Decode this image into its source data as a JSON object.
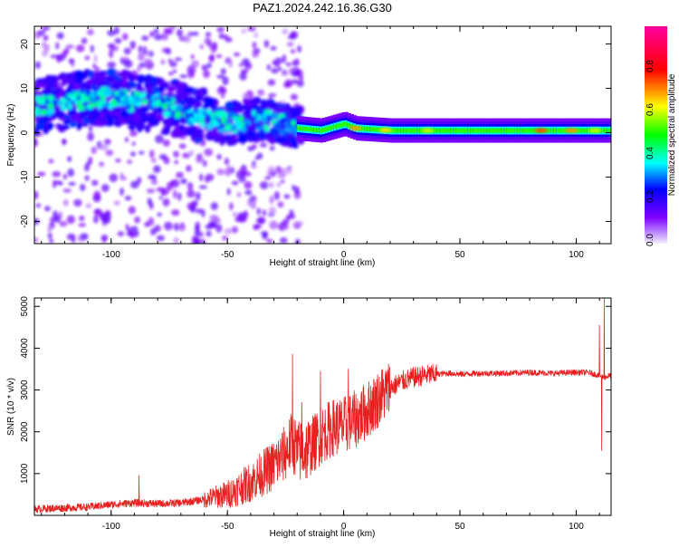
{
  "title": "PAZ1.2024.242.16.36.G30",
  "colors": {
    "line": "#e82020",
    "frame": "#000000",
    "background": "#ffffff"
  },
  "chart_data": [
    {
      "type": "heatmap",
      "xlabel": "Height of straight line (km)",
      "ylabel": "Frequency (Hz)",
      "xlim": [
        -133,
        115
      ],
      "ylim": [
        -25,
        24
      ],
      "xticks": [
        -100,
        -50,
        0,
        50,
        100
      ],
      "xtick_labels": [
        "-100",
        "-50",
        "0",
        "50",
        "100"
      ],
      "yticks": [
        -20,
        -10,
        0,
        10,
        20
      ],
      "ytick_labels": [
        "-20",
        "-10",
        "0",
        "10",
        "20"
      ],
      "colorbar": {
        "label": "Normalized spectral amplitude",
        "range": [
          0,
          1
        ],
        "ticks": [
          0.0,
          0.2,
          0.4,
          0.6,
          0.8
        ],
        "tick_labels": [
          "0.0",
          "0.2",
          "0.4",
          "0.6",
          "0.8"
        ],
        "colormap": [
          "#f4f0ff",
          "#8000ff",
          "#0000ff",
          "#00ffff",
          "#00ff00",
          "#ffff00",
          "#ff0000",
          "#ff00a0"
        ]
      },
      "ridge": [
        {
          "x": -130,
          "f": 6.0
        },
        {
          "x": -115,
          "f": 7.5
        },
        {
          "x": -100,
          "f": 8.0
        },
        {
          "x": -90,
          "f": 7.0
        },
        {
          "x": -80,
          "f": 6.5
        },
        {
          "x": -70,
          "f": 5.0
        },
        {
          "x": -60,
          "f": 3.5
        },
        {
          "x": -50,
          "f": 2.0
        },
        {
          "x": -40,
          "f": 3.0
        },
        {
          "x": -30,
          "f": 2.5
        },
        {
          "x": -20,
          "f": 1.0
        },
        {
          "x": -10,
          "f": 0.5
        },
        {
          "x": 0,
          "f": 2.0
        },
        {
          "x": 5,
          "f": 1.0
        },
        {
          "x": 20,
          "f": 0.5
        },
        {
          "x": 50,
          "f": 0.5
        },
        {
          "x": 80,
          "f": 0.5
        },
        {
          "x": 100,
          "f": 0.5
        },
        {
          "x": 115,
          "f": 0.5
        }
      ]
    },
    {
      "type": "line",
      "xlabel": "Height of straight line (km)",
      "ylabel": "SNR (10 * v/v)",
      "xlim": [
        -133,
        115
      ],
      "ylim": [
        0,
        5200
      ],
      "xticks": [
        -100,
        -50,
        0,
        50,
        100
      ],
      "xtick_labels": [
        "-100",
        "-50",
        "0",
        "50",
        "100"
      ],
      "yticks": [
        1000,
        2000,
        3000,
        4000,
        5000
      ],
      "ytick_labels": [
        "1000",
        "2000",
        "3000",
        "4000",
        "5000"
      ],
      "series": [
        {
          "color": "#e82020",
          "x": [
            -133,
            -120,
            -110,
            -100,
            -90,
            -80,
            -70,
            -60,
            -55,
            -50,
            -45,
            -40,
            -35,
            -30,
            -25,
            -22,
            -20,
            -15,
            -10,
            -5,
            0,
            5,
            10,
            15,
            20,
            25,
            30,
            35,
            40,
            45,
            50,
            60,
            70,
            80,
            90,
            100,
            105,
            110,
            112,
            115
          ],
          "y": [
            150,
            180,
            200,
            260,
            300,
            280,
            300,
            380,
            450,
            500,
            650,
            800,
            1000,
            1200,
            1500,
            1800,
            1500,
            1600,
            1900,
            2100,
            2150,
            2300,
            2500,
            2800,
            3050,
            3200,
            3300,
            3350,
            3380,
            3400,
            3380,
            3400,
            3400,
            3420,
            3400,
            3420,
            3420,
            3350,
            3300,
            3350
          ],
          "spikes": [
            {
              "x": -88,
              "y": 950
            },
            {
              "x": -22,
              "y": 3850
            },
            {
              "x": -18,
              "y": 2700
            },
            {
              "x": -10,
              "y": 3450
            },
            {
              "x": 2,
              "y": 3500
            },
            {
              "x": 110,
              "y": 4550
            },
            {
              "x": 111,
              "y": 1550
            },
            {
              "x": 112,
              "y": 5200
            }
          ]
        }
      ]
    }
  ]
}
